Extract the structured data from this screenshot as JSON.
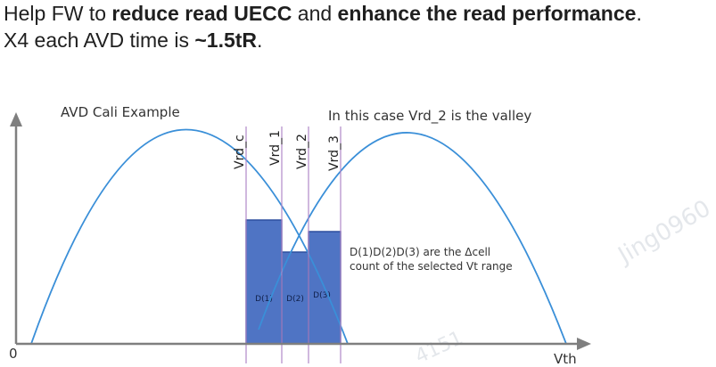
{
  "heading": {
    "line1_prefix": "Help FW to ",
    "line1_bold1": "reduce read UECC",
    "line1_mid": " and ",
    "line1_bold2": "enhance the read performance",
    "line1_suffix": ".",
    "line2_prefix": "X4 each AVD time is ",
    "line2_bold": "~1.5tR",
    "line2_suffix": "."
  },
  "diagram": {
    "title": "AVD Cali Example",
    "valley_note": "In this case Vrd_2 is the valley",
    "delta_note_line1": "D(1)D(2)D(3) are the Δcell",
    "delta_note_line2": "count of the selected Vt range",
    "origin_label": "0",
    "x_axis_label": "Vth",
    "read_levels": [
      "Vrd_c",
      "Vrd_1",
      "Vrd_2",
      "Vrd_3"
    ],
    "bars": [
      "D(1)",
      "D(2)",
      "D(3)"
    ],
    "watermark": "Jing0960",
    "watermark2": "4151",
    "colors": {
      "curve": "#3a8fd8",
      "bar_fill": "#4f74c4",
      "bar_stroke": "#2d4f9e",
      "read_line": "#b088c8",
      "axis": "#7f7f7f"
    }
  }
}
